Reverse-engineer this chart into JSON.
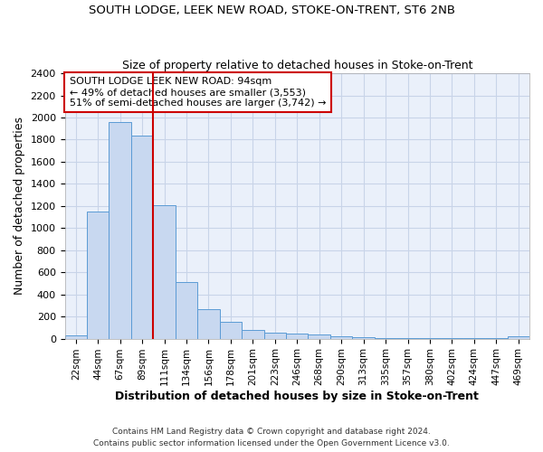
{
  "title1": "SOUTH LODGE, LEEK NEW ROAD, STOKE-ON-TRENT, ST6 2NB",
  "title2": "Size of property relative to detached houses in Stoke-on-Trent",
  "xlabel": "Distribution of detached houses by size in Stoke-on-Trent",
  "ylabel": "Number of detached properties",
  "footnote1": "Contains HM Land Registry data © Crown copyright and database right 2024.",
  "footnote2": "Contains public sector information licensed under the Open Government Licence v3.0.",
  "categories": [
    "22sqm",
    "44sqm",
    "67sqm",
    "89sqm",
    "111sqm",
    "134sqm",
    "156sqm",
    "178sqm",
    "201sqm",
    "223sqm",
    "246sqm",
    "268sqm",
    "290sqm",
    "313sqm",
    "335sqm",
    "357sqm",
    "380sqm",
    "402sqm",
    "424sqm",
    "447sqm",
    "469sqm"
  ],
  "values": [
    30,
    1150,
    1960,
    1840,
    1210,
    515,
    265,
    155,
    80,
    50,
    45,
    40,
    20,
    15,
    8,
    5,
    5,
    3,
    3,
    3,
    18
  ],
  "bar_color": "#c8d8f0",
  "bar_edge_color": "#5b9bd5",
  "grid_color": "#c8d4e8",
  "bg_color": "#eaf0fa",
  "red_line_x": 3.5,
  "annotation_text": "SOUTH LODGE LEEK NEW ROAD: 94sqm\n← 49% of detached houses are smaller (3,553)\n51% of semi-detached houses are larger (3,742) →",
  "annotation_box_color": "#ffffff",
  "annotation_box_edge": "#cc0000",
  "red_line_color": "#cc0000",
  "ylim": [
    0,
    2400
  ],
  "yticks": [
    0,
    200,
    400,
    600,
    800,
    1000,
    1200,
    1400,
    1600,
    1800,
    2000,
    2200,
    2400
  ]
}
